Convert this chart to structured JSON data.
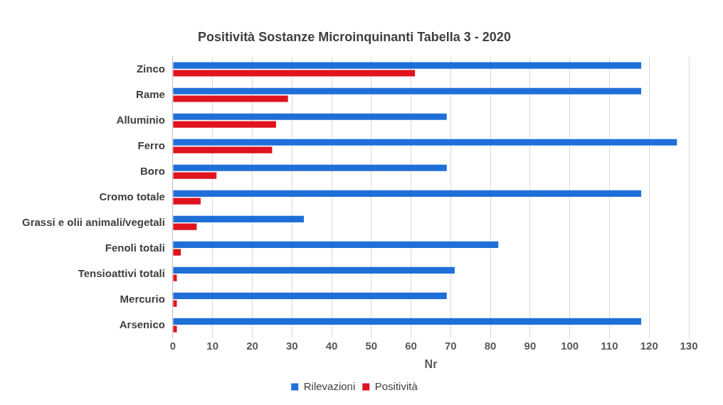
{
  "chart_data": {
    "type": "bar",
    "orientation": "horizontal",
    "title": "Positività Sostanze Microinquinanti Tabella 3 - 2020",
    "xlabel": "Nr",
    "categories": [
      "Zinco",
      "Rame",
      "Alluminio",
      "Ferro",
      "Boro",
      "Cromo totale",
      "Grassi e olii animali/vegetali",
      "Fenoli totali",
      "Tensioattivi totali",
      "Mercurio",
      "Arsenico"
    ],
    "series": [
      {
        "name": "Rilevazioni",
        "color": "#1f6fd8",
        "values": [
          118,
          118,
          69,
          127,
          69,
          118,
          33,
          82,
          71,
          69,
          118
        ]
      },
      {
        "name": "Positività",
        "color": "#e0141e",
        "values": [
          61,
          29,
          26,
          25,
          11,
          7,
          6,
          2,
          1,
          1,
          1
        ]
      }
    ],
    "xlim": [
      0,
      130
    ],
    "xticks": [
      0,
      10,
      20,
      30,
      40,
      50,
      60,
      70,
      80,
      90,
      100,
      110,
      120,
      130
    ],
    "grid": "x",
    "legend": "bottom"
  }
}
